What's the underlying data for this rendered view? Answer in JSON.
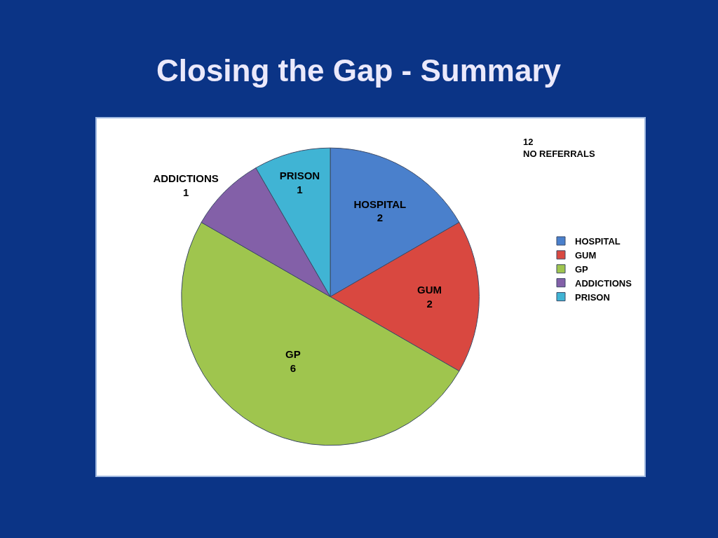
{
  "chart_data": {
    "type": "pie",
    "title": "Closing the Gap - Summary",
    "categories": [
      "HOSPITAL",
      "GUM",
      "GP",
      "ADDICTIONS",
      "PRISON"
    ],
    "values": [
      2,
      2,
      6,
      1,
      1
    ],
    "colors": [
      "#4a80cc",
      "#d94840",
      "#9fc54e",
      "#8360a8",
      "#40b4d4"
    ],
    "data_labels": true,
    "legend": "right",
    "annotations": [
      "12\nNO REFERRALS"
    ]
  }
}
